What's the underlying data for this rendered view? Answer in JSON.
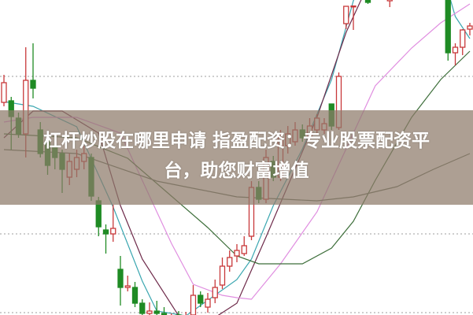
{
  "headline": {
    "line1": "杠杆炒股在哪里申请 指盈配资：专业股票配资平",
    "line2": "台，助您财富增值"
  },
  "chart_data": {
    "type": "candlestick",
    "title": "",
    "xlabel": "",
    "ylabel": "",
    "ylim": [
      -0.75,
      99.25
    ],
    "grid": {
      "horizontal_dotted_at": [
        0,
        25,
        75
      ]
    },
    "colors": {
      "up": "#c8383a",
      "down": "#1f8b24",
      "grid": "#b0b0b0",
      "band": "#8e7a6a"
    },
    "candles_ohlc": [
      {
        "t": 0,
        "o": 66.75,
        "h": 75.5,
        "l": 65.5,
        "c": 73
      },
      {
        "t": 1,
        "o": 67.25,
        "h": 68.5,
        "l": 51.75,
        "c": 62.25
      },
      {
        "t": 2,
        "o": 61.75,
        "h": 63.5,
        "l": 55.5,
        "c": 56.75
      },
      {
        "t": 3,
        "o": 56.75,
        "h": 84.25,
        "l": 49.25,
        "c": 73.75
      },
      {
        "t": 4,
        "o": 73.75,
        "h": 85.5,
        "l": 68,
        "c": 71.25
      },
      {
        "t": 5,
        "o": 58,
        "h": 60.5,
        "l": 49.25,
        "c": 50.5
      },
      {
        "t": 6,
        "o": 54.75,
        "h": 56.75,
        "l": 43.75,
        "c": 46.75
      },
      {
        "t": 7,
        "o": 53,
        "h": 55.5,
        "l": 45.5,
        "c": 49.25
      },
      {
        "t": 8,
        "o": 50.5,
        "h": 51.75,
        "l": 38,
        "c": 45.5
      },
      {
        "t": 9,
        "o": 43,
        "h": 50.5,
        "l": 40.5,
        "c": 48
      },
      {
        "t": 10,
        "o": 45.5,
        "h": 51.75,
        "l": 43,
        "c": 49.25
      },
      {
        "t": 11,
        "o": 48,
        "h": 53,
        "l": 45.5,
        "c": 50.5
      },
      {
        "t": 12,
        "o": 49.25,
        "h": 50.5,
        "l": 35.5,
        "c": 37
      },
      {
        "t": 13,
        "o": 35.5,
        "h": 36.75,
        "l": 24.25,
        "c": 27.25
      },
      {
        "t": 14,
        "o": 26.25,
        "h": 28,
        "l": 18.75,
        "c": 25
      },
      {
        "t": 15,
        "o": 25,
        "h": 34.25,
        "l": 22.5,
        "c": 26.75
      },
      {
        "t": 16,
        "o": 13.75,
        "h": 18,
        "l": 2.25,
        "c": 8
      },
      {
        "t": 17,
        "o": 8,
        "h": 11.75,
        "l": 6.75,
        "c": 8.5
      },
      {
        "t": 18,
        "o": 8,
        "h": 9.75,
        "l": 1.75,
        "c": 3
      },
      {
        "t": 19,
        "o": 3,
        "h": 4.25,
        "l": -0.75,
        "c": -0.25
      },
      {
        "t": 20,
        "o": -0.25,
        "h": 3.25,
        "l": -0.75,
        "c": 0.5
      },
      {
        "t": 21,
        "o": 0.5,
        "h": 3.75,
        "l": -0.75,
        "c": -0.25
      },
      {
        "t": 22,
        "o": -0.25,
        "h": 1.75,
        "l": -3.25,
        "c": -2
      },
      {
        "t": 23,
        "o": -2.75,
        "h": -0.25,
        "l": -3.75,
        "c": -1.25
      },
      {
        "t": 24,
        "o": -0.75,
        "h": 0.5,
        "l": -4.5,
        "c": -3.25
      },
      {
        "t": 25,
        "o": -3.25,
        "h": 0.25,
        "l": -4.5,
        "c": -1.25
      },
      {
        "t": 26,
        "o": -0.75,
        "h": 8.75,
        "l": -1.25,
        "c": 5.5
      },
      {
        "t": 27,
        "o": 5.5,
        "h": 6.75,
        "l": 1.75,
        "c": 3
      },
      {
        "t": 28,
        "o": 1.75,
        "h": 6.25,
        "l": 0,
        "c": 4.25
      },
      {
        "t": 29,
        "o": 4.75,
        "h": 10.5,
        "l": 3,
        "c": 8
      },
      {
        "t": 30,
        "o": 8.75,
        "h": 17.5,
        "l": 7.5,
        "c": 14.75
      },
      {
        "t": 31,
        "o": 14.75,
        "h": 19.75,
        "l": 13,
        "c": 17.5
      },
      {
        "t": 32,
        "o": 18,
        "h": 21.75,
        "l": 16,
        "c": 19.75
      },
      {
        "t": 33,
        "o": 18.75,
        "h": 24.25,
        "l": 18,
        "c": 21.25
      },
      {
        "t": 34,
        "o": 24.25,
        "h": 41.75,
        "l": 23,
        "c": 39.75
      },
      {
        "t": 35,
        "o": 39.75,
        "h": 41.75,
        "l": 34.75,
        "c": 36
      },
      {
        "t": 36,
        "o": 36,
        "h": 51.75,
        "l": 34.75,
        "c": 49.25
      },
      {
        "t": 37,
        "o": 48,
        "h": 49.75,
        "l": 41.75,
        "c": 43
      },
      {
        "t": 38,
        "o": 43,
        "h": 58,
        "l": 41.75,
        "c": 55.5
      },
      {
        "t": 39,
        "o": 53,
        "h": 59.25,
        "l": 50.5,
        "c": 56.75
      },
      {
        "t": 40,
        "o": 54.25,
        "h": 60.5,
        "l": 53,
        "c": 58
      },
      {
        "t": 41,
        "o": 58,
        "h": 59.75,
        "l": 54.25,
        "c": 55.5
      },
      {
        "t": 42,
        "o": 55.5,
        "h": 61.75,
        "l": 54.25,
        "c": 59.25
      },
      {
        "t": 43,
        "o": 58,
        "h": 63,
        "l": 56.75,
        "c": 61.75
      },
      {
        "t": 44,
        "o": 58,
        "h": 61.75,
        "l": 56.75,
        "c": 60
      },
      {
        "t": 45,
        "o": 66.25,
        "h": 66.25,
        "l": 58,
        "c": 59.25
      },
      {
        "t": 46,
        "o": 58.75,
        "h": 76.25,
        "l": 58,
        "c": 75
      },
      {
        "t": 47,
        "o": 91.75,
        "h": 97.25,
        "l": 90,
        "c": 97.25
      },
      {
        "t": 48,
        "o": 97.25,
        "h": 97.4,
        "l": 89.75,
        "c": 97.35
      },
      {
        "t": 50,
        "o": 101.75,
        "h": 103,
        "l": 98,
        "c": 98.5
      },
      {
        "t": 51,
        "o": 104,
        "h": 109,
        "l": 103,
        "c": 107
      },
      {
        "t": 53,
        "o": 99,
        "h": 105,
        "l": 97,
        "c": 104
      },
      {
        "t": 61,
        "o": 101,
        "h": 103,
        "l": 80,
        "c": 82.5
      },
      {
        "t": 62,
        "o": 82.5,
        "h": 85.5,
        "l": 78.5,
        "c": 84.25
      },
      {
        "t": 63,
        "o": 84.25,
        "h": 90,
        "l": 81.75,
        "c": 89.75
      },
      {
        "t": 64,
        "o": 90,
        "h": 92,
        "l": 88,
        "c": 91
      }
    ],
    "moving_averages": [
      {
        "color": "#3aa6b0",
        "points": [
          [
            0,
            67
          ],
          [
            4,
            65.5
          ],
          [
            10,
            59
          ],
          [
            15,
            33.5
          ],
          [
            19,
            10
          ],
          [
            21,
            0.5
          ],
          [
            25,
            -1
          ],
          [
            32,
            10.5
          ],
          [
            34,
            17
          ],
          [
            37,
            34
          ],
          [
            41,
            52
          ],
          [
            45,
            74
          ],
          [
            48,
            99
          ],
          [
            50,
            110
          ],
          [
            58,
            110
          ],
          [
            61,
            102
          ],
          [
            62,
            94
          ],
          [
            64,
            87
          ]
        ]
      },
      {
        "color": "#6e2a4a",
        "points": [
          [
            0,
            55.5
          ],
          [
            4,
            64
          ],
          [
            8,
            64
          ],
          [
            13,
            57
          ],
          [
            16,
            34
          ],
          [
            19,
            17
          ],
          [
            24,
            -1
          ],
          [
            28,
            -3
          ],
          [
            32,
            3
          ],
          [
            36,
            24
          ],
          [
            43,
            62
          ],
          [
            47,
            89
          ],
          [
            49,
            99
          ],
          [
            51,
            108
          ]
        ]
      },
      {
        "color": "#e08ee0",
        "points": [
          [
            0,
            60.5
          ],
          [
            4,
            62
          ],
          [
            10,
            62
          ],
          [
            16,
            57
          ],
          [
            20,
            37
          ],
          [
            23,
            22
          ],
          [
            26,
            9
          ],
          [
            30,
            5.5
          ],
          [
            32,
            4.75
          ],
          [
            34,
            4.25
          ],
          [
            38,
            15.5
          ],
          [
            43,
            32
          ],
          [
            47,
            52
          ],
          [
            51,
            72
          ],
          [
            56,
            84
          ],
          [
            60,
            92
          ],
          [
            64,
            98
          ]
        ]
      },
      {
        "color": "#3d6e3a",
        "points": [
          [
            0,
            56.75
          ],
          [
            10,
            55.5
          ],
          [
            17,
            49
          ],
          [
            23,
            37
          ],
          [
            28,
            27
          ],
          [
            32,
            18
          ],
          [
            35,
            15.5
          ],
          [
            41,
            15.5
          ],
          [
            45,
            20.5
          ],
          [
            48,
            29
          ],
          [
            51,
            42
          ],
          [
            56,
            62
          ],
          [
            60,
            74
          ],
          [
            64,
            83
          ]
        ]
      },
      {
        "color": "#5f6b5c",
        "points": [
          [
            0,
            51.75
          ],
          [
            10,
            50.5
          ],
          [
            21,
            41.75
          ],
          [
            32,
            36.75
          ],
          [
            43,
            35.5
          ],
          [
            48,
            36.75
          ],
          [
            54,
            40
          ],
          [
            59,
            45.5
          ],
          [
            64,
            50.5
          ]
        ]
      }
    ]
  }
}
